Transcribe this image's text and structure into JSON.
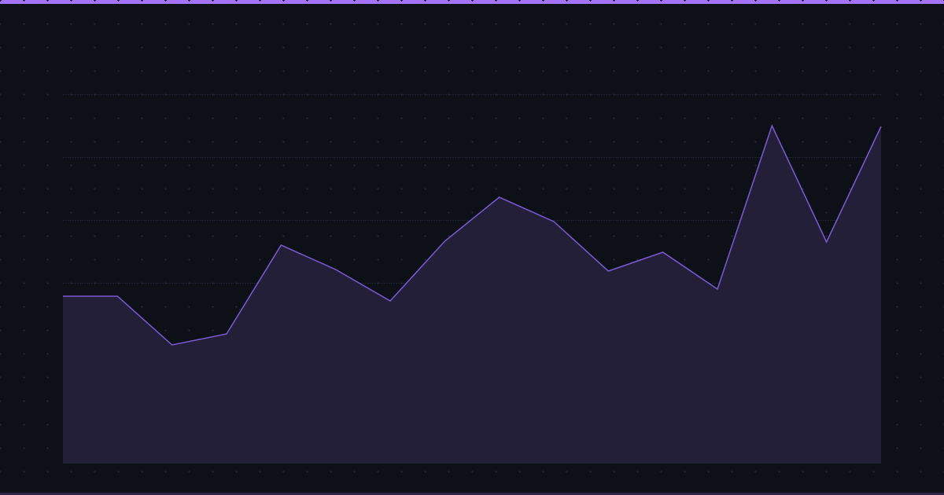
{
  "colors": {
    "background": "#0d1017",
    "accent_bar": "#a374f7",
    "bottom_bar": "#2f2545",
    "line": "#7b5bd6",
    "area_fill": "#231f38",
    "grid": "#1f2333",
    "dots": "#221f38"
  },
  "chart_data": {
    "type": "area",
    "title": "",
    "xlabel": "",
    "ylabel": "",
    "x": [
      1,
      2,
      3,
      4,
      5,
      6,
      7,
      8,
      9,
      10,
      11,
      12,
      13,
      14,
      15,
      16
    ],
    "values": [
      213,
      213,
      151,
      165,
      278,
      247,
      207,
      283,
      339,
      308,
      245,
      269,
      222,
      430,
      282,
      429
    ],
    "ylim": [
      0,
      470
    ],
    "xlim": [
      1,
      16
    ],
    "grid": {
      "horizontal": true,
      "vertical": false,
      "lines_at": [
        70,
        150,
        230,
        310,
        390,
        470
      ]
    },
    "legend": "none",
    "tick_labels": "none"
  }
}
